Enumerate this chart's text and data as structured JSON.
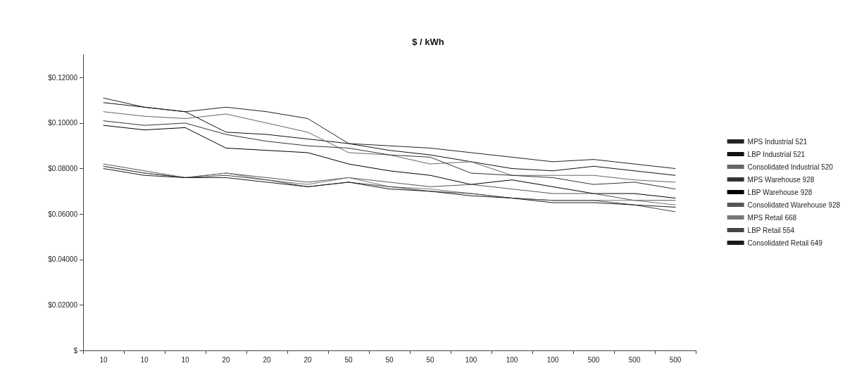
{
  "chart_data": {
    "type": "line",
    "title": "$ / kWh",
    "categories": [
      "10",
      "10",
      "10",
      "20",
      "20",
      "20",
      "50",
      "50",
      "50",
      "100",
      "100",
      "100",
      "500",
      "500",
      "500"
    ],
    "ylim": [
      0,
      0.13
    ],
    "yticks": [
      {
        "value": 0,
        "label": "$"
      },
      {
        "value": 0.02,
        "label": "$0.02000"
      },
      {
        "value": 0.04,
        "label": "$0.04000"
      },
      {
        "value": 0.06,
        "label": "$0.06000"
      },
      {
        "value": 0.08,
        "label": "$0.08000"
      },
      {
        "value": 0.1,
        "label": "$0.10000"
      },
      {
        "value": 0.12,
        "label": "$0.12000"
      }
    ],
    "grid": false,
    "legend": "right",
    "line_style": "solid",
    "series": [
      {
        "name": "MPS Industrial 521",
        "color": "#222222",
        "values": [
          0.111,
          0.107,
          0.105,
          0.107,
          0.105,
          0.102,
          0.091,
          0.09,
          0.089,
          0.087,
          0.085,
          0.083,
          0.084,
          0.082,
          0.08
        ]
      },
      {
        "name": "LBP Industrial 521",
        "color": "#111111",
        "values": [
          0.109,
          0.107,
          0.105,
          0.096,
          0.095,
          0.093,
          0.091,
          0.088,
          0.086,
          0.083,
          0.08,
          0.079,
          0.081,
          0.079,
          0.077
        ]
      },
      {
        "name": "Consolidated Industrial 520",
        "color": "#666666",
        "values": [
          0.105,
          0.103,
          0.102,
          0.104,
          0.1,
          0.096,
          0.087,
          0.086,
          0.082,
          0.083,
          0.077,
          0.077,
          0.077,
          0.075,
          0.074
        ]
      },
      {
        "name": "MPS Warehouse 928",
        "color": "#333333",
        "values": [
          0.101,
          0.099,
          0.1,
          0.095,
          0.092,
          0.09,
          0.089,
          0.086,
          0.085,
          0.078,
          0.077,
          0.076,
          0.073,
          0.074,
          0.071
        ]
      },
      {
        "name": "LBP Warehouse 928",
        "color": "#000000",
        "values": [
          0.099,
          0.097,
          0.098,
          0.089,
          0.088,
          0.087,
          0.082,
          0.079,
          0.077,
          0.073,
          0.075,
          0.072,
          0.069,
          0.069,
          0.067
        ]
      },
      {
        "name": "Consolidated Warehouse 928",
        "color": "#555555",
        "values": [
          0.082,
          0.079,
          0.076,
          0.078,
          0.076,
          0.074,
          0.076,
          0.074,
          0.072,
          0.073,
          0.071,
          0.069,
          0.069,
          0.066,
          0.066
        ]
      },
      {
        "name": "MPS Retail 668",
        "color": "#777777",
        "values": [
          0.081,
          0.078,
          0.076,
          0.078,
          0.075,
          0.073,
          0.076,
          0.072,
          0.071,
          0.069,
          0.067,
          0.066,
          0.066,
          0.066,
          0.064
        ]
      },
      {
        "name": "LBP Retail 554",
        "color": "#444444",
        "values": [
          0.081,
          0.078,
          0.076,
          0.077,
          0.075,
          0.072,
          0.074,
          0.072,
          0.07,
          0.069,
          0.067,
          0.066,
          0.066,
          0.064,
          0.061
        ]
      },
      {
        "name": "Consolidated Retail 649",
        "color": "#1a1a1a",
        "values": [
          0.08,
          0.077,
          0.076,
          0.076,
          0.074,
          0.072,
          0.074,
          0.071,
          0.07,
          0.068,
          0.067,
          0.065,
          0.065,
          0.064,
          0.063
        ]
      }
    ]
  }
}
